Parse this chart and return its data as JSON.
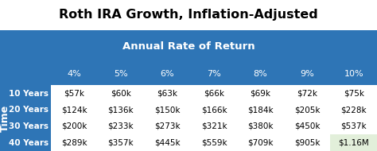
{
  "title": "Roth IRA Growth, Inflation-Adjusted",
  "header_label": "Annual Rate of Return",
  "col_headers": [
    "4%",
    "5%",
    "6%",
    "7%",
    "8%",
    "9%",
    "10%"
  ],
  "row_headers": [
    "10 Years",
    "20 Years",
    "30 Years",
    "40 Years"
  ],
  "row_label": "Time",
  "table_data": [
    [
      "$57k",
      "$60k",
      "$63k",
      "$66k",
      "$69k",
      "$72k",
      "$75k"
    ],
    [
      "$124k",
      "$136k",
      "$150k",
      "$166k",
      "$184k",
      "$205k",
      "$228k"
    ],
    [
      "$200k",
      "$233k",
      "$273k",
      "$321k",
      "$380k",
      "$450k",
      "$537k"
    ],
    [
      "$289k",
      "$357k",
      "$445k",
      "$559k",
      "$709k",
      "$905k",
      "$1.16M"
    ]
  ],
  "bg_color": "#2E75B6",
  "white_bg": "#FFFFFF",
  "highlight_cell_row": 3,
  "highlight_cell_col": 6,
  "highlight_color": "#E2EFDA",
  "title_color": "#000000",
  "cell_text_color": "#000000",
  "title_fontsize": 11.5,
  "header_fontsize": 9.5,
  "col_header_fontsize": 8,
  "row_header_fontsize": 7.5,
  "cell_fontsize": 7.5,
  "time_label_fontsize": 9
}
